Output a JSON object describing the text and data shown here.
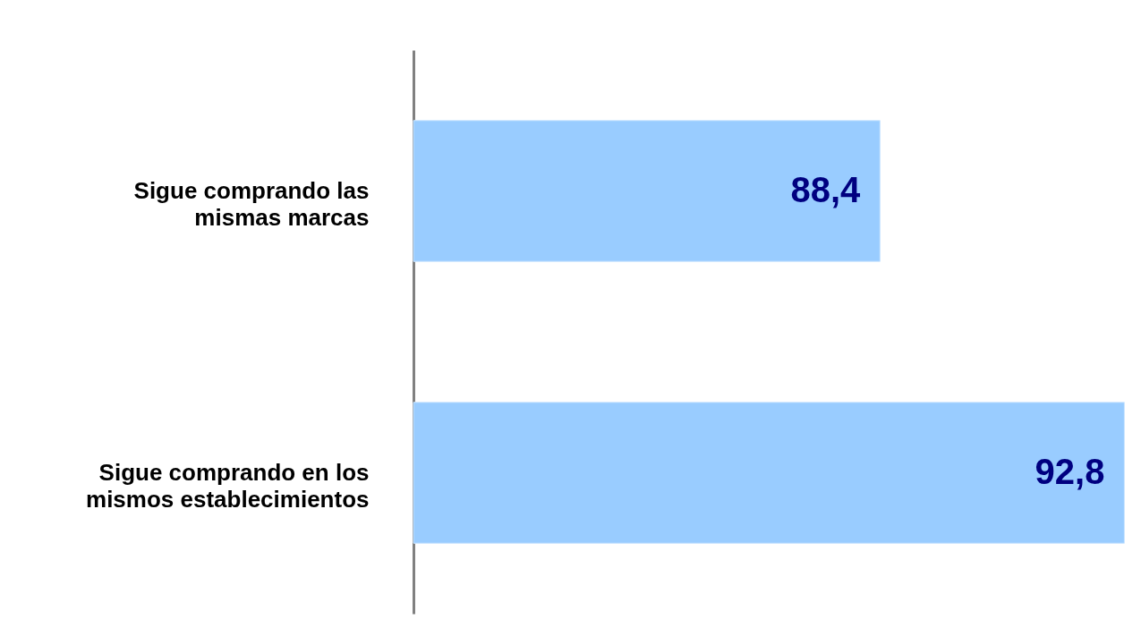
{
  "chart_data": {
    "type": "bar",
    "orientation": "horizontal",
    "categories": [
      "Sigue comprando las mismas marcas",
      "Sigue comprando en los mismos establecimientos"
    ],
    "values": [
      88.4,
      92.8
    ],
    "value_labels": [
      "88,4",
      "92,8"
    ],
    "color": "#99ccff",
    "xlim": [
      80,
      93.1
    ],
    "tick_labels": "y"
  }
}
